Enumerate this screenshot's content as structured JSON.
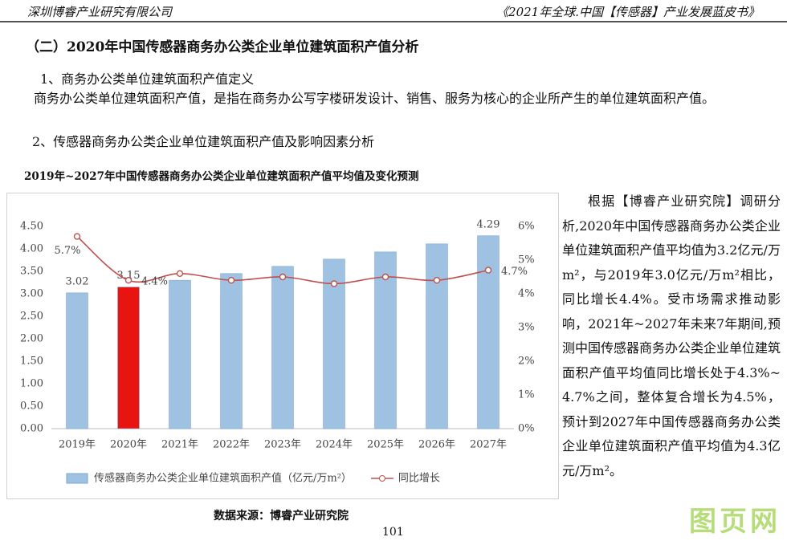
{
  "header": {
    "left": "深圳博睿产业研究有限公司",
    "right": "《2021年全球.中国【传感器】产业发展蓝皮书》"
  },
  "section_title": "（二）2020年中国传感器商务办公类企业单位建筑面积产值分析",
  "paragraphs": [
    "1、商务办公类单位建筑面积产值定义",
    "商务办公类单位建筑面积产值，是指在商务办公写字楼研发设计、销售、服务为核心的企业所产生的单位建筑面积产值。",
    "2、传感器商务办公类企业单位建筑面积产值及影响因素分析"
  ],
  "chart_data": {
    "type": "bar",
    "title": "2019年~2027年中国传感器商务办公类企业单位建筑面积产值平均值及变化预测",
    "categories": [
      "2019年",
      "2020年",
      "2021年",
      "2022年",
      "2023年",
      "2024年",
      "2025年",
      "2026年",
      "2027年"
    ],
    "series": [
      {
        "name": "传感器商务办公类企业单位建筑面积产值（亿元/万m²）",
        "type": "bar",
        "color": "#9fc2e2",
        "colors": [
          "#9fc2e2",
          "#e8140f",
          "#9fc2e2",
          "#9fc2e2",
          "#9fc2e2",
          "#9fc2e2",
          "#9fc2e2",
          "#9fc2e2",
          "#9fc2e2"
        ],
        "values": [
          3.02,
          3.15,
          3.3,
          3.45,
          3.61,
          3.77,
          3.93,
          4.11,
          4.29
        ],
        "value_labels": [
          "3.02",
          "3.15",
          null,
          null,
          null,
          null,
          null,
          null,
          "4.29"
        ]
      },
      {
        "name": "同比增长",
        "type": "line",
        "axis": "y2",
        "color": "#c0504d",
        "values": [
          5.7,
          4.4,
          4.6,
          4.4,
          4.5,
          4.3,
          4.5,
          4.4,
          4.7
        ],
        "value_labels": [
          "5.7%",
          "4.4%",
          null,
          null,
          null,
          null,
          null,
          null,
          "4.7%"
        ]
      }
    ],
    "ylim": [
      0,
      4.5
    ],
    "yticks": [
      {
        "value": 0,
        "label": "0.00"
      },
      {
        "value": 0.5,
        "label": "0.50"
      },
      {
        "value": 1,
        "label": "1.00"
      },
      {
        "value": 1.5,
        "label": "1.50"
      },
      {
        "value": 2,
        "label": "2.00"
      },
      {
        "value": 2.5,
        "label": "2.50"
      },
      {
        "value": 3,
        "label": "3.00"
      },
      {
        "value": 3.5,
        "label": "3.50"
      },
      {
        "value": 4,
        "label": "4.00"
      },
      {
        "value": 4.5,
        "label": "4.50"
      }
    ],
    "y2lim": [
      0,
      6
    ],
    "y2ticks": [
      {
        "value": 0,
        "label": "0%"
      },
      {
        "value": 1,
        "label": "1%"
      },
      {
        "value": 2,
        "label": "2%"
      },
      {
        "value": 3,
        "label": "3%"
      },
      {
        "value": 4,
        "label": "4%"
      },
      {
        "value": 5,
        "label": "5%"
      },
      {
        "value": 6,
        "label": "6%"
      }
    ],
    "grid": false,
    "legend": "bottom"
  },
  "side_text": "根据【博睿产业研究院】调研分析,2020年中国传感器商务办公类企业单位建筑面积产值平均值为3.2亿元/万m²，与2019年3.0亿元/万m²相比，同比增长4.4%。受市场需求推动影响，2021年~2027年未来7年期间,预测中国传感器商务办公类企业单位建筑面积产值平均值同比增长处于4.3%~4.7%之间，整体复合增长为4.5%，预计到2027年中国传感器商务办公类企业单位建筑面积产值平均值为4.3亿元/万m²。",
  "source": "数据来源：博睿产业研究院",
  "page_number": "101",
  "watermark": "图页网"
}
